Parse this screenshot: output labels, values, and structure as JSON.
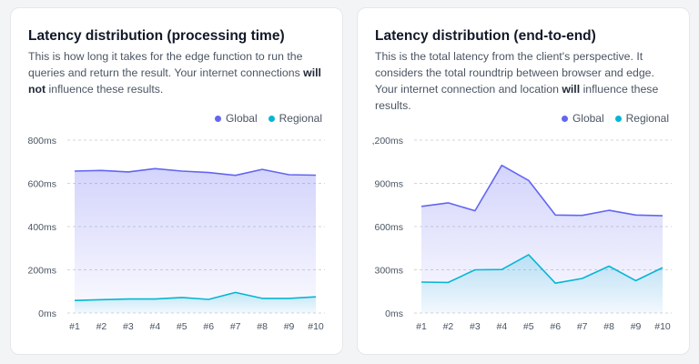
{
  "colors": {
    "global": "#6366f1",
    "regional": "#06b6d4"
  },
  "cards": [
    {
      "title": "Latency distribution (processing time)",
      "desc_pre": "This is how long it takes for the edge function to run the queries and return the result. Your internet connections ",
      "desc_bold": "will not",
      "desc_post": " influence these results.",
      "legend_global": "Global",
      "legend_regional": "Regional"
    },
    {
      "title": "Latency distribution (end-to-end)",
      "desc_pre": "This is the total latency from the client's perspective. It considers the total roundtrip between browser and edge. Your internet connection and location ",
      "desc_bold": "will",
      "desc_post": " influence these results.",
      "legend_global": "Global",
      "legend_regional": "Regional"
    }
  ],
  "chart_data": [
    {
      "type": "area",
      "title": "Latency distribution (processing time)",
      "categories": [
        "#1",
        "#2",
        "#3",
        "#4",
        "#5",
        "#6",
        "#7",
        "#8",
        "#9",
        "#10"
      ],
      "y_ticks": [
        "0ms",
        "200ms",
        "400ms",
        "600ms",
        "800ms"
      ],
      "ylim": [
        0,
        800
      ],
      "grid": true,
      "legend": "top-right",
      "series": [
        {
          "name": "Global",
          "values": [
            657,
            660,
            653,
            668,
            657,
            650,
            637,
            665,
            640,
            638
          ]
        },
        {
          "name": "Regional",
          "values": [
            58,
            62,
            65,
            65,
            72,
            63,
            95,
            68,
            68,
            75
          ]
        }
      ]
    },
    {
      "type": "area",
      "title": "Latency distribution (end-to-end)",
      "categories": [
        "#1",
        "#2",
        "#3",
        "#4",
        "#5",
        "#6",
        "#7",
        "#8",
        "#9",
        "#10"
      ],
      "y_ticks": [
        "0ms",
        "300ms",
        "600ms",
        "900ms",
        ",200ms"
      ],
      "ylim": [
        0,
        1200
      ],
      "grid": true,
      "legend": "top-right",
      "series": [
        {
          "name": "Global",
          "values": [
            740,
            765,
            710,
            1025,
            920,
            680,
            678,
            713,
            680,
            675
          ]
        },
        {
          "name": "Regional",
          "values": [
            215,
            212,
            300,
            302,
            405,
            207,
            240,
            325,
            225,
            315
          ]
        }
      ]
    }
  ]
}
